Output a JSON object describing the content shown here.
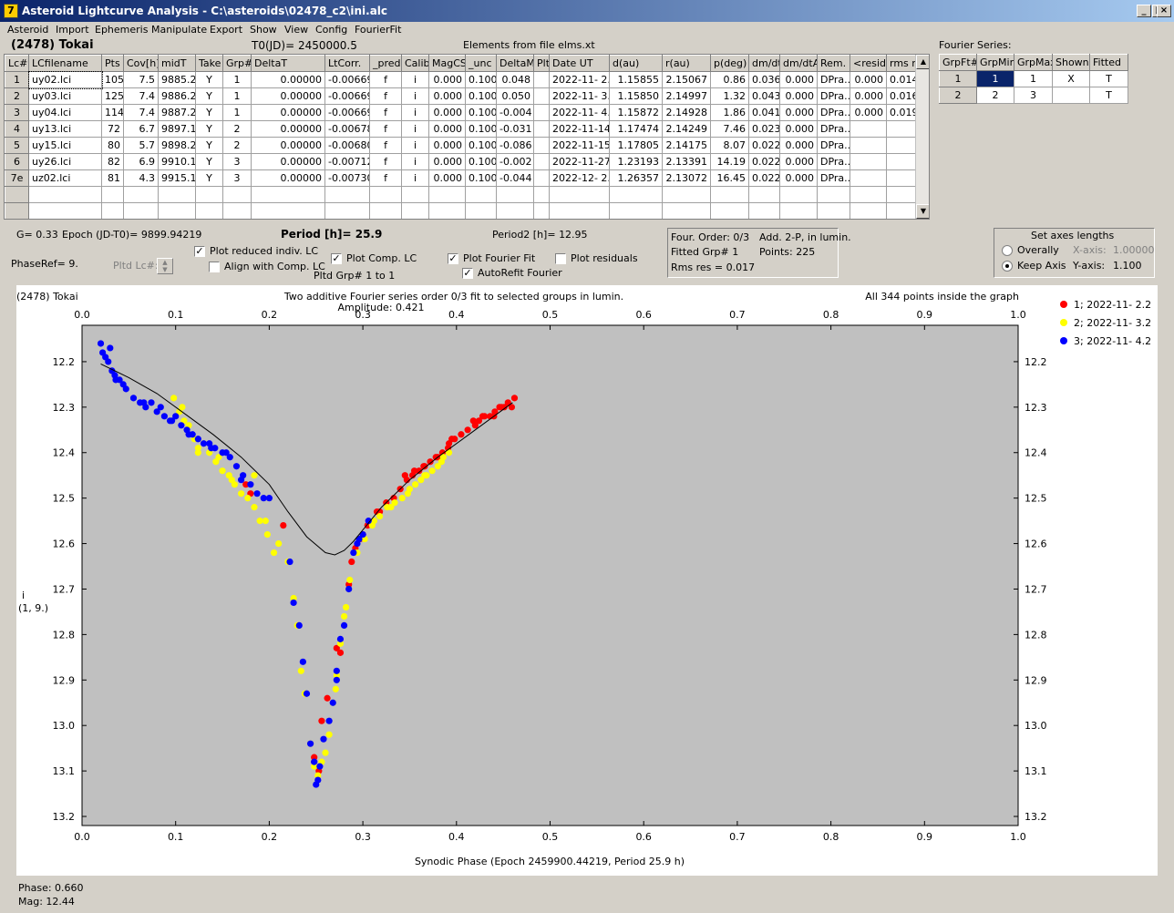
{
  "window": {
    "title": "Asteroid Lightcurve Analysis - C:\\asteroids\\02478_c2\\ini.alc",
    "min": "_",
    "max": "□",
    "close": "×",
    "icon_glyph": "7"
  },
  "menu": [
    "Asteroid",
    "Import",
    "Ephemeris",
    "Manipulate",
    "Export",
    "Show",
    "View",
    "Config",
    "FourierFit"
  ],
  "header": {
    "asteroid": "(2478) Tokai",
    "t0": "T0(JD)= 2450000.5",
    "elements": "Elements from file elms.xt"
  },
  "lc_table": {
    "columns": [
      "Lc#",
      "LCfilename",
      "Pts",
      "Cov[h]",
      "midT",
      "Take",
      "Grp#",
      "DeltaT",
      "LtCorr.",
      "_pred.",
      "Calib",
      "MagCS",
      "_unc",
      "DeltaM",
      "Plt",
      "Date UT",
      "d(au)",
      "r(au)",
      "p(deg)",
      "dm/dt",
      "dm/dtA",
      "Rem.",
      "<resid>",
      "rms res"
    ],
    "rows": [
      [
        "1",
        "uy02.lci",
        "105",
        "7.5",
        "9885.2",
        "Y",
        "1",
        "0.00000",
        "-0.00669",
        "f",
        "i",
        "0.000",
        "0.100",
        "0.048",
        "",
        "2022-11- 2.2",
        "1.15855",
        "2.15067",
        "0.86",
        "0.036",
        "0.000",
        "DPra...",
        "0.000",
        "0.014"
      ],
      [
        "2",
        "uy03.lci",
        "125",
        "7.4",
        "9886.2",
        "Y",
        "1",
        "0.00000",
        "-0.00669",
        "f",
        "i",
        "0.000",
        "0.100",
        "0.050",
        "",
        "2022-11- 3.2",
        "1.15850",
        "2.14997",
        "1.32",
        "0.043",
        "0.000",
        "DPra...",
        "0.000",
        "0.016"
      ],
      [
        "3",
        "uy04.lci",
        "114",
        "7.4",
        "9887.2",
        "Y",
        "1",
        "0.00000",
        "-0.00669",
        "f",
        "i",
        "0.000",
        "0.100",
        "-0.004",
        "",
        "2022-11- 4.2",
        "1.15872",
        "2.14928",
        "1.86",
        "0.041",
        "0.000",
        "DPra...",
        "0.000",
        "0.019"
      ],
      [
        "4",
        "uy13.lci",
        "72",
        "6.7",
        "9897.1",
        "Y",
        "2",
        "0.00000",
        "-0.00678",
        "f",
        "i",
        "0.000",
        "0.100",
        "-0.031",
        "",
        "2022-11-14.1",
        "1.17474",
        "2.14249",
        "7.46",
        "0.023",
        "0.000",
        "DPra...",
        "",
        ""
      ],
      [
        "5",
        "uy15.lci",
        "80",
        "5.7",
        "9898.2",
        "Y",
        "2",
        "0.00000",
        "-0.00680",
        "f",
        "i",
        "0.000",
        "0.100",
        "-0.086",
        "",
        "2022-11-15.2",
        "1.17805",
        "2.14175",
        "8.07",
        "0.022",
        "0.000",
        "DPra...",
        "",
        ""
      ],
      [
        "6",
        "uy26.lci",
        "82",
        "6.9",
        "9910.1",
        "Y",
        "3",
        "0.00000",
        "-0.00712",
        "f",
        "i",
        "0.000",
        "0.100",
        "-0.002",
        "",
        "2022-11-27.1",
        "1.23193",
        "2.13391",
        "14.19",
        "0.022",
        "0.000",
        "DPra...",
        "",
        ""
      ],
      [
        "7e",
        "uz02.lci",
        "81",
        "4.3",
        "9915.1",
        "Y",
        "3",
        "0.00000",
        "-0.00730",
        "f",
        "i",
        "0.000",
        "0.100",
        "-0.044",
        "",
        "2022-12- 2.1",
        "1.26357",
        "2.13072",
        "16.45",
        "0.022",
        "0.000",
        "DPra...",
        "",
        ""
      ]
    ]
  },
  "fourier_series": {
    "label": "Fourier Series:",
    "columns": [
      "GrpFt#",
      "GrpMin",
      "GrpMax",
      "Shown",
      "Fitted"
    ],
    "rows": [
      [
        "1",
        "1",
        "1",
        "X",
        "T"
      ],
      [
        "2",
        "2",
        "3",
        "",
        "T"
      ]
    ]
  },
  "info": {
    "g": "G= 0.33",
    "epoch": "Epoch (JD-T0)= 9899.94219",
    "period": "Period [h]= 25.9",
    "period2": "Period2 [h]= 12.95",
    "phase_ref": "PhaseRef= 9.",
    "pltd_lc": "Pltd Lc#:",
    "plot_reduced": "Plot reduced indiv. LC",
    "align_comp": "Align with Comp. LC",
    "plot_comp": "Plot Comp. LC",
    "pltd_grp": "Pltd Grp#  1  to  1",
    "plot_fourier": "Plot Fourier Fit",
    "plot_residuals": "Plot residuals",
    "autorefit": "AutoRefit Fourier"
  },
  "fourier_box": {
    "order": "Four. Order:  0/3",
    "fitted_grp": "Fitted Grp# 1",
    "rms": "Rms res     = 0.017",
    "add": "Add. 2-P, in lumin.",
    "points": "Points: 225"
  },
  "axes_box": {
    "title": "Set axes lengths",
    "overally": "Overally",
    "keep_axis": "Keep Axis",
    "x_label": "X-axis:",
    "x_val": "1.00000",
    "y_label": "Y-axis:",
    "y_val": "1.100"
  },
  "checkboxes": {
    "plot_reduced": true,
    "align_comp": false,
    "plot_comp": true,
    "plot_fourier": true,
    "plot_residuals": false,
    "autorefit": true
  },
  "status": {
    "phase": "Phase:  0.660",
    "mag": "Mag:    12.44"
  },
  "chart_data": {
    "type": "scatter",
    "title_left": "(2478) Tokai",
    "title": "Two additive Fourier series order 0/3 fit to selected groups in lumin.",
    "subtitle": "Amplitude: 0.421",
    "note": "All 344 points inside the graph",
    "xlabel": "Synodic Phase (Epoch 2459900.44219, Period 25.9 h)",
    "ylabel": "i",
    "ylabel2": "(1, 9.)",
    "xlim": [
      0,
      1
    ],
    "ylim": [
      13.22,
      12.12
    ],
    "xticks": [
      "0.0",
      "0.1",
      "0.2",
      "0.3",
      "0.4",
      "0.5",
      "0.6",
      "0.7",
      "0.8",
      "0.9",
      "1.0"
    ],
    "yticks": [
      "12.2",
      "12.3",
      "12.4",
      "12.5",
      "12.6",
      "12.7",
      "12.8",
      "12.9",
      "13.0",
      "13.1",
      "13.2"
    ],
    "legend": [
      "1; 2022-11- 2.2",
      "2; 2022-11- 3.2",
      "3; 2022-11- 4.2"
    ],
    "colors": {
      "series1": "#ff0000",
      "series2": "#ffff00",
      "series3": "#0000ff",
      "bg": "#c0c0c0"
    },
    "series": [
      {
        "points": [
          [
            0.256,
            12.99
          ],
          [
            0.262,
            12.94
          ],
          [
            0.272,
            12.83
          ],
          [
            0.285,
            12.69
          ],
          [
            0.288,
            12.64
          ],
          [
            0.292,
            12.61
          ],
          [
            0.297,
            12.59
          ],
          [
            0.305,
            12.56
          ],
          [
            0.315,
            12.53
          ],
          [
            0.325,
            12.51
          ],
          [
            0.333,
            12.5
          ],
          [
            0.34,
            12.48
          ],
          [
            0.347,
            12.46
          ],
          [
            0.353,
            12.45
          ],
          [
            0.36,
            12.44
          ],
          [
            0.366,
            12.43
          ],
          [
            0.372,
            12.42
          ],
          [
            0.378,
            12.41
          ],
          [
            0.385,
            12.4
          ],
          [
            0.391,
            12.39
          ],
          [
            0.398,
            12.37
          ],
          [
            0.405,
            12.36
          ],
          [
            0.412,
            12.35
          ],
          [
            0.418,
            12.33
          ],
          [
            0.424,
            12.33
          ],
          [
            0.43,
            12.32
          ],
          [
            0.436,
            12.32
          ],
          [
            0.441,
            12.31
          ],
          [
            0.446,
            12.3
          ],
          [
            0.451,
            12.3
          ],
          [
            0.455,
            12.29
          ],
          [
            0.459,
            12.3
          ],
          [
            0.462,
            12.28
          ],
          [
            0.175,
            12.47
          ],
          [
            0.18,
            12.49
          ],
          [
            0.248,
            13.07
          ],
          [
            0.253,
            13.1
          ],
          [
            0.345,
            12.45
          ],
          [
            0.365,
            12.43
          ],
          [
            0.395,
            12.37
          ],
          [
            0.42,
            12.34
          ],
          [
            0.44,
            12.32
          ],
          [
            0.215,
            12.56
          ],
          [
            0.248,
            13.08
          ],
          [
            0.276,
            12.84
          ],
          [
            0.3,
            12.58
          ],
          [
            0.318,
            12.53
          ],
          [
            0.355,
            12.44
          ],
          [
            0.38,
            12.41
          ],
          [
            0.392,
            12.38
          ],
          [
            0.428,
            12.32
          ],
          [
            0.448,
            12.3
          ]
        ]
      },
      {
        "points": [
          [
            0.098,
            12.28
          ],
          [
            0.104,
            12.31
          ],
          [
            0.109,
            12.33
          ],
          [
            0.114,
            12.34
          ],
          [
            0.12,
            12.37
          ],
          [
            0.124,
            12.39
          ],
          [
            0.13,
            12.38
          ],
          [
            0.136,
            12.4
          ],
          [
            0.143,
            12.42
          ],
          [
            0.15,
            12.44
          ],
          [
            0.157,
            12.45
          ],
          [
            0.163,
            12.47
          ],
          [
            0.17,
            12.49
          ],
          [
            0.177,
            12.5
          ],
          [
            0.184,
            12.52
          ],
          [
            0.19,
            12.55
          ],
          [
            0.198,
            12.58
          ],
          [
            0.205,
            12.62
          ],
          [
            0.21,
            12.6
          ],
          [
            0.22,
            12.64
          ],
          [
            0.226,
            12.72
          ],
          [
            0.23,
            12.78
          ],
          [
            0.234,
            12.88
          ],
          [
            0.238,
            12.93
          ],
          [
            0.244,
            13.04
          ],
          [
            0.248,
            13.09
          ],
          [
            0.252,
            13.11
          ],
          [
            0.26,
            13.06
          ],
          [
            0.268,
            12.95
          ],
          [
            0.272,
            12.89
          ],
          [
            0.276,
            12.82
          ],
          [
            0.28,
            12.76
          ],
          [
            0.286,
            12.68
          ],
          [
            0.294,
            12.62
          ],
          [
            0.302,
            12.59
          ],
          [
            0.31,
            12.56
          ],
          [
            0.318,
            12.54
          ],
          [
            0.326,
            12.52
          ],
          [
            0.334,
            12.51
          ],
          [
            0.342,
            12.5
          ],
          [
            0.35,
            12.48
          ],
          [
            0.356,
            12.47
          ],
          [
            0.362,
            12.46
          ],
          [
            0.368,
            12.45
          ],
          [
            0.374,
            12.44
          ],
          [
            0.38,
            12.43
          ],
          [
            0.386,
            12.41
          ],
          [
            0.392,
            12.4
          ],
          [
            0.184,
            12.45
          ],
          [
            0.196,
            12.55
          ],
          [
            0.146,
            12.41
          ],
          [
            0.107,
            12.3
          ],
          [
            0.256,
            13.08
          ],
          [
            0.264,
            13.02
          ],
          [
            0.271,
            12.92
          ],
          [
            0.282,
            12.74
          ],
          [
            0.312,
            12.55
          ],
          [
            0.33,
            12.52
          ],
          [
            0.348,
            12.49
          ],
          [
            0.366,
            12.45
          ],
          [
            0.384,
            12.42
          ],
          [
            0.124,
            12.4
          ],
          [
            0.16,
            12.46
          ]
        ]
      },
      {
        "points": [
          [
            0.02,
            12.16
          ],
          [
            0.022,
            12.18
          ],
          [
            0.025,
            12.19
          ],
          [
            0.028,
            12.2
          ],
          [
            0.032,
            12.22
          ],
          [
            0.035,
            12.23
          ],
          [
            0.04,
            12.24
          ],
          [
            0.047,
            12.26
          ],
          [
            0.055,
            12.28
          ],
          [
            0.062,
            12.29
          ],
          [
            0.068,
            12.3
          ],
          [
            0.074,
            12.29
          ],
          [
            0.08,
            12.31
          ],
          [
            0.088,
            12.32
          ],
          [
            0.094,
            12.33
          ],
          [
            0.1,
            12.32
          ],
          [
            0.106,
            12.34
          ],
          [
            0.112,
            12.35
          ],
          [
            0.118,
            12.36
          ],
          [
            0.124,
            12.37
          ],
          [
            0.13,
            12.38
          ],
          [
            0.136,
            12.38
          ],
          [
            0.142,
            12.39
          ],
          [
            0.15,
            12.4
          ],
          [
            0.158,
            12.41
          ],
          [
            0.165,
            12.43
          ],
          [
            0.172,
            12.45
          ],
          [
            0.18,
            12.47
          ],
          [
            0.187,
            12.49
          ],
          [
            0.194,
            12.5
          ],
          [
            0.2,
            12.5
          ],
          [
            0.222,
            12.64
          ],
          [
            0.226,
            12.73
          ],
          [
            0.232,
            12.78
          ],
          [
            0.236,
            12.86
          ],
          [
            0.24,
            12.93
          ],
          [
            0.244,
            13.04
          ],
          [
            0.248,
            13.08
          ],
          [
            0.25,
            13.13
          ],
          [
            0.254,
            13.09
          ],
          [
            0.258,
            13.03
          ],
          [
            0.264,
            12.99
          ],
          [
            0.268,
            12.95
          ],
          [
            0.272,
            12.9
          ],
          [
            0.276,
            12.81
          ],
          [
            0.28,
            12.78
          ],
          [
            0.285,
            12.7
          ],
          [
            0.29,
            12.62
          ],
          [
            0.294,
            12.6
          ],
          [
            0.3,
            12.58
          ],
          [
            0.306,
            12.55
          ],
          [
            0.03,
            12.17
          ],
          [
            0.036,
            12.24
          ],
          [
            0.084,
            12.3
          ],
          [
            0.096,
            12.33
          ],
          [
            0.114,
            12.36
          ],
          [
            0.138,
            12.39
          ],
          [
            0.154,
            12.4
          ],
          [
            0.252,
            13.12
          ],
          [
            0.272,
            12.88
          ],
          [
            0.296,
            12.59
          ],
          [
            0.044,
            12.25
          ],
          [
            0.066,
            12.29
          ],
          [
            0.17,
            12.46
          ]
        ]
      }
    ],
    "fit_curve": [
      [
        0.02,
        12.205
      ],
      [
        0.05,
        12.235
      ],
      [
        0.08,
        12.27
      ],
      [
        0.11,
        12.315
      ],
      [
        0.14,
        12.36
      ],
      [
        0.17,
        12.41
      ],
      [
        0.2,
        12.47
      ],
      [
        0.22,
        12.53
      ],
      [
        0.24,
        12.585
      ],
      [
        0.26,
        12.62
      ],
      [
        0.27,
        12.625
      ],
      [
        0.28,
        12.615
      ],
      [
        0.29,
        12.595
      ],
      [
        0.3,
        12.57
      ],
      [
        0.32,
        12.52
      ],
      [
        0.35,
        12.46
      ],
      [
        0.38,
        12.41
      ],
      [
        0.41,
        12.365
      ],
      [
        0.44,
        12.32
      ],
      [
        0.46,
        12.29
      ]
    ]
  }
}
